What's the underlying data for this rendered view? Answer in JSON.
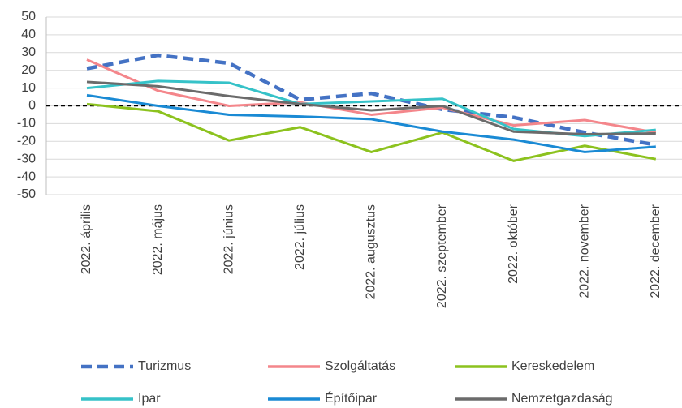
{
  "chart_data": {
    "type": "line",
    "categories": [
      "2022. április",
      "2022. május",
      "2022. június",
      "2022. július",
      "2022. augusztus",
      "2022. szeptember",
      "2022. október",
      "2022. november",
      "2022. december"
    ],
    "series": [
      {
        "name": "Turizmus",
        "color": "#4472c4",
        "dashed": true,
        "values": [
          21,
          28.5,
          24,
          3.5,
          7,
          -2,
          -6.5,
          -15,
          -22
        ]
      },
      {
        "name": "Szolgáltatás",
        "color": "#f4868b",
        "values": [
          26,
          8.5,
          0,
          2,
          -5,
          -1,
          -11,
          -8,
          -15
        ]
      },
      {
        "name": "Kereskedelem",
        "color": "#8cc21e",
        "values": [
          1,
          -3,
          -19.5,
          -12,
          -26,
          -15,
          -31,
          -22.5,
          -30
        ]
      },
      {
        "name": "Ipar",
        "color": "#36c2c8",
        "values": [
          10,
          14,
          13,
          1,
          2.5,
          4,
          -13,
          -17,
          -13.5
        ]
      },
      {
        "name": "Építőipar",
        "color": "#1a8ad4",
        "values": [
          6,
          0,
          -5,
          -6,
          -7.5,
          -14.5,
          -19,
          -26,
          -23
        ]
      },
      {
        "name": "Nemzetgazdaság",
        "color": "#6b6b6b",
        "values": [
          13.5,
          11,
          5.5,
          1,
          -2.5,
          0,
          -14.5,
          -16,
          -15.5
        ]
      }
    ],
    "ylim": [
      -50,
      50
    ],
    "yticks": [
      -50,
      -40,
      -30,
      -20,
      -10,
      0,
      10,
      20,
      30,
      40,
      50
    ],
    "grid": true,
    "zero_line": true,
    "legend": "bottom"
  }
}
